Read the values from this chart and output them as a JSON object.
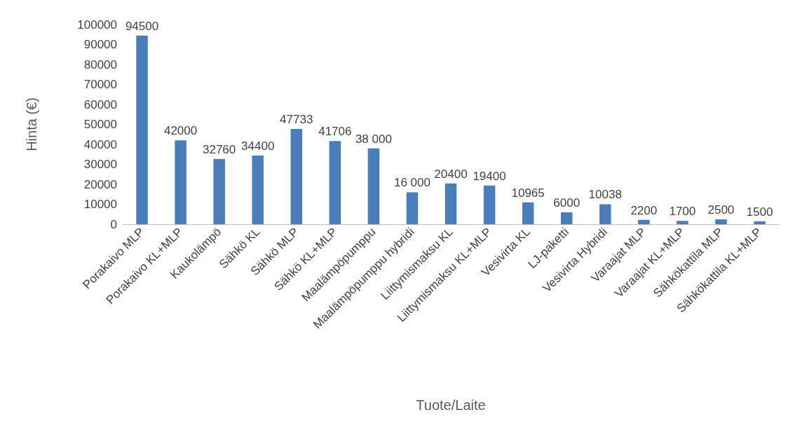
{
  "chart_data": {
    "type": "bar",
    "xlabel": "Tuote/Laite",
    "ylabel": "Hinta (€)",
    "categories": [
      "Porakaivo MLP",
      "Porakaivo KL+MLP",
      "Kaukolämpö",
      "Sähkö KL",
      "Sähkö MLP",
      "Sähkö KL+MLP",
      "Maalämpöpumppu",
      "Maalämpöpumppu hybridi",
      "Liittymismaksu KL",
      "Liittymismaksu KL+MLP",
      "Vesivirta KL",
      "LJ-paketti",
      "Vesivirta Hybridi",
      "Varaajat MLP",
      "Varaajat KL+MLP",
      "Sähkökattila MLP",
      "Sähkökattila KL+MLP"
    ],
    "values": [
      94500,
      42000,
      32760,
      34400,
      47733,
      41706,
      38000,
      16000,
      20400,
      19400,
      10965,
      6000,
      10038,
      2200,
      1700,
      2500,
      1500
    ],
    "value_labels": [
      "94500",
      "42000",
      "32760",
      "34400",
      "47733",
      "41706",
      "38 000",
      "16 000",
      "20400",
      "19400",
      "10965",
      "6000",
      "10038",
      "2200",
      "1700",
      "2500",
      "1500"
    ],
    "color": "#4a7ebb",
    "ylim": [
      0,
      100000
    ],
    "yticks": [
      0,
      10000,
      20000,
      30000,
      40000,
      50000,
      60000,
      70000,
      80000,
      90000,
      100000
    ],
    "grid": false
  }
}
